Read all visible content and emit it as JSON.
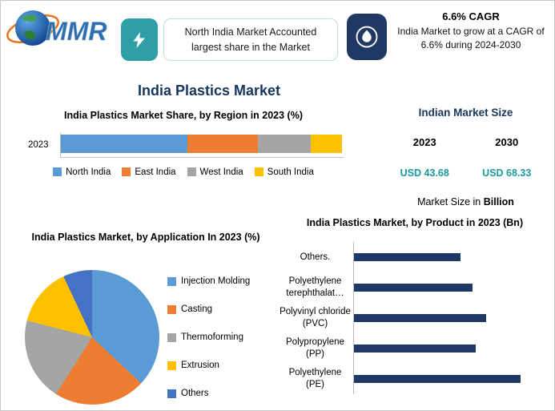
{
  "title": "India Plastics Market",
  "header": {
    "logo_text": "MMR",
    "badge_left": {
      "text": "North India Market Accounted largest share in the Market"
    },
    "badge_right": {
      "heading": "6.6% CAGR",
      "text": "India Market to grow at a CAGR of 6.6% during 2024-2030"
    }
  },
  "market_size": {
    "title": "Indian Market Size",
    "columns": [
      {
        "year": "2023",
        "value": "USD 43.68"
      },
      {
        "year": "2030",
        "value": "USD 68.33"
      }
    ],
    "note_prefix": "Market Size in ",
    "note_bold": "Billion"
  },
  "colors": {
    "brand_navy": "#1F3864",
    "brand_teal": "#2E9FA7",
    "value_teal": "#1B9AA0",
    "title_navy": "#17365D"
  },
  "chart_data": [
    {
      "id": "region-share",
      "type": "bar",
      "orientation": "horizontal-stacked",
      "title": "India Plastics Market Share, by Region in 2023 (%)",
      "categories": [
        "2023"
      ],
      "series": [
        {
          "name": "North India",
          "values": [
            45
          ],
          "color": "#5B9BD5"
        },
        {
          "name": "East India",
          "values": [
            25
          ],
          "color": "#ED7D31"
        },
        {
          "name": "West India",
          "values": [
            19
          ],
          "color": "#A5A5A5"
        },
        {
          "name": "South India",
          "values": [
            11
          ],
          "color": "#FFC000"
        }
      ],
      "xlim": [
        0,
        100
      ],
      "legend_position": "bottom"
    },
    {
      "id": "application-share",
      "type": "pie",
      "title": "India Plastics Market, by Application In 2023 (%)",
      "labels": [
        "Injection Molding",
        "Casting",
        "Thermoforming",
        "Extrusion",
        "Others"
      ],
      "values": [
        37,
        22,
        20,
        14,
        7
      ],
      "colors": [
        "#5B9BD5",
        "#ED7D31",
        "#A5A5A5",
        "#FFC000",
        "#4472C4"
      ],
      "legend_position": "right"
    },
    {
      "id": "product-size",
      "type": "bar",
      "orientation": "horizontal",
      "title": "India Plastics Market, by Product in 2023 (Bn)",
      "categories": [
        "Others.",
        "Polyethylene terephthalat…",
        "Polyvinyl chloride (PVC)",
        "Polypropylene (PP)",
        "Polyethylene (PE)"
      ],
      "values": [
        6.4,
        7.1,
        7.9,
        7.3,
        10.0
      ],
      "bar_color": "#1F3864",
      "unit": "Bn"
    }
  ]
}
